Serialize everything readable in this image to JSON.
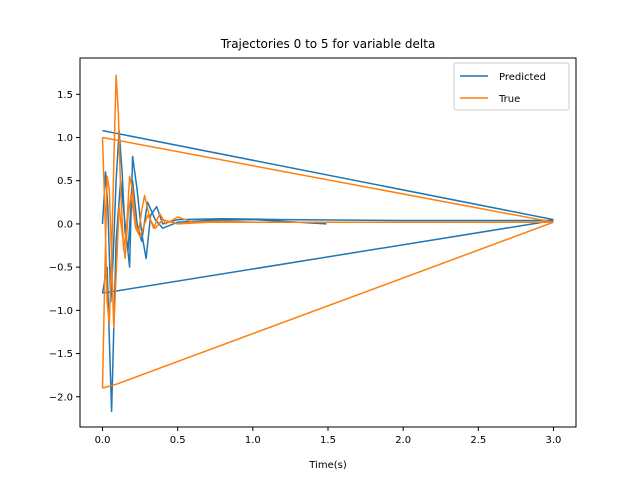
{
  "chart_data": {
    "type": "line",
    "title": "Trajectories 0 to 5 for variable delta",
    "xlabel": "Time(s)",
    "ylabel": "",
    "xlim": [
      -0.15,
      3.15
    ],
    "ylim": [
      -2.35,
      1.92
    ],
    "xticks": [
      0.0,
      0.5,
      1.0,
      1.5,
      2.0,
      2.5,
      3.0
    ],
    "xtick_labels": [
      "0.0",
      "0.5",
      "1.0",
      "1.5",
      "2.0",
      "2.5",
      "3.0"
    ],
    "yticks": [
      -2.0,
      -1.5,
      -1.0,
      -0.5,
      0.0,
      0.5,
      1.0,
      1.5
    ],
    "ytick_labels": [
      "−2.0",
      "−1.5",
      "−1.0",
      "−0.5",
      "0.0",
      "0.5",
      "1.0",
      "1.5"
    ],
    "grid": false,
    "legend_position": "top-right",
    "series": [
      {
        "name": "Predicted",
        "color": "#1f77b4",
        "points": [
          [
            0.0,
            0.0
          ],
          [
            0.02,
            0.6
          ],
          [
            0.035,
            0.2
          ],
          [
            0.055,
            -0.9
          ],
          [
            0.07,
            -0.4
          ],
          [
            0.09,
            0.5
          ],
          [
            0.11,
            1.08
          ],
          [
            0.13,
            0.6
          ],
          [
            0.15,
            -0.1
          ],
          [
            0.17,
            -0.3
          ],
          [
            0.2,
            0.5
          ],
          [
            0.23,
            0.0
          ],
          [
            0.26,
            -0.2
          ],
          [
            0.3,
            0.25
          ],
          [
            0.35,
            0.05
          ],
          [
            0.4,
            -0.05
          ],
          [
            0.5,
            0.02
          ],
          [
            0.7,
            0.04
          ],
          [
            1.0,
            0.05
          ],
          [
            1.49,
            0.0
          ],
          [
            null,
            null
          ],
          [
            0.0,
            1.08
          ],
          [
            3.0,
            0.05
          ],
          [
            null,
            null
          ],
          [
            0.0,
            -0.8
          ],
          [
            0.03,
            -0.5
          ],
          [
            0.06,
            -2.17
          ],
          [
            0.09,
            -0.2
          ],
          [
            0.12,
            0.5
          ],
          [
            0.15,
            0.0
          ],
          [
            0.18,
            -0.5
          ],
          [
            0.2,
            0.78
          ],
          [
            0.23,
            0.4
          ],
          [
            0.26,
            -0.1
          ],
          [
            0.29,
            -0.4
          ],
          [
            0.32,
            0.1
          ],
          [
            0.36,
            0.2
          ],
          [
            0.4,
            0.0
          ],
          [
            0.5,
            0.05
          ],
          [
            0.8,
            0.06
          ],
          [
            1.2,
            0.05
          ],
          [
            2.0,
            0.04
          ],
          [
            3.0,
            0.04
          ],
          [
            null,
            null
          ],
          [
            0.0,
            -0.8
          ],
          [
            0.08,
            -0.78
          ],
          [
            3.0,
            0.04
          ]
        ]
      },
      {
        "name": "True",
        "color": "#ff7f0e",
        "points": [
          [
            0.0,
            1.0
          ],
          [
            0.015,
            0.2
          ],
          [
            0.03,
            -0.9
          ],
          [
            0.045,
            -1.15
          ],
          [
            0.06,
            -0.4
          ],
          [
            0.075,
            0.7
          ],
          [
            0.09,
            1.72
          ],
          [
            0.105,
            1.3
          ],
          [
            0.12,
            0.4
          ],
          [
            0.14,
            -0.3
          ],
          [
            0.16,
            -0.05
          ],
          [
            0.18,
            0.55
          ],
          [
            0.2,
            0.4
          ],
          [
            0.22,
            0.0
          ],
          [
            0.24,
            -0.1
          ],
          [
            0.26,
            0.15
          ],
          [
            0.28,
            0.33
          ],
          [
            0.31,
            0.1
          ],
          [
            0.34,
            -0.05
          ],
          [
            0.38,
            0.12
          ],
          [
            0.42,
            0.0
          ],
          [
            0.5,
            0.08
          ],
          [
            0.6,
            0.02
          ],
          [
            0.8,
            0.03
          ],
          [
            1.0,
            0.02
          ],
          [
            2.0,
            0.02
          ],
          [
            3.0,
            0.02
          ],
          [
            null,
            null
          ],
          [
            0.0,
            1.0
          ],
          [
            3.0,
            0.02
          ],
          [
            null,
            null
          ],
          [
            0.0,
            -1.9
          ],
          [
            0.015,
            -0.6
          ],
          [
            0.03,
            0.55
          ],
          [
            0.045,
            0.4
          ],
          [
            0.06,
            -0.4
          ],
          [
            0.075,
            -1.2
          ],
          [
            0.09,
            -0.6
          ],
          [
            0.11,
            0.2
          ],
          [
            0.13,
            -0.1
          ],
          [
            0.15,
            -0.4
          ],
          [
            0.17,
            0.1
          ],
          [
            0.19,
            0.35
          ],
          [
            0.22,
            -0.05
          ],
          [
            0.25,
            -0.15
          ],
          [
            0.3,
            0.1
          ],
          [
            0.35,
            -0.05
          ],
          [
            0.4,
            0.05
          ],
          [
            0.5,
            0.0
          ],
          [
            0.7,
            0.02
          ],
          [
            1.0,
            0.02
          ],
          [
            3.0,
            0.02
          ],
          [
            null,
            null
          ],
          [
            0.0,
            -1.9
          ],
          [
            0.1,
            -1.85
          ],
          [
            3.0,
            0.02
          ]
        ]
      }
    ]
  }
}
